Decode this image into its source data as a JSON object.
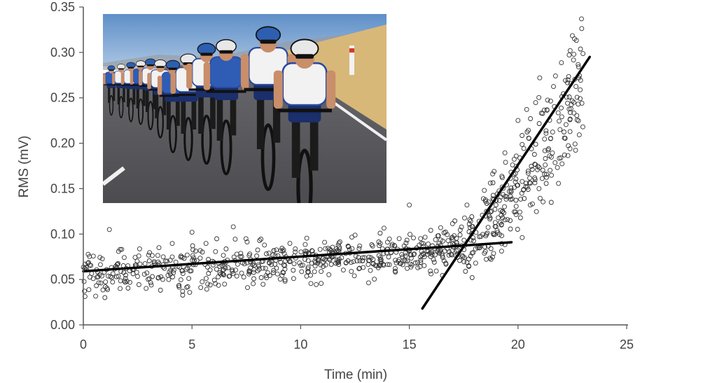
{
  "chart_data": {
    "type": "scatter",
    "xlabel": "Time (min)",
    "ylabel": "RMS (mV)",
    "xlim": [
      0,
      25
    ],
    "ylim": [
      0,
      0.35
    ],
    "x_ticks": [
      0,
      5,
      10,
      15,
      20,
      25
    ],
    "y_ticks": [
      0.0,
      0.05,
      0.1,
      0.15,
      0.2,
      0.25,
      0.3,
      0.35
    ],
    "x_tick_labels": [
      "0",
      "5",
      "10",
      "15",
      "20",
      "25"
    ],
    "y_tick_labels": [
      "0.00",
      "0.05",
      "0.10",
      "0.15",
      "0.20",
      "0.25",
      "0.30",
      "0.35"
    ],
    "grid": false,
    "marker": "open-circle",
    "point_cloud": {
      "description_segments": [
        {
          "x_range": [
            0,
            17.5
          ],
          "trend_start": 0.057,
          "trend_end": 0.088,
          "spread": 0.012
        },
        {
          "x_range": [
            17.5,
            23
          ],
          "trend_start": 0.085,
          "trend_end": 0.27,
          "spread": 0.025
        }
      ]
    },
    "outliers": [
      {
        "x": 1.2,
        "y": 0.105
      },
      {
        "x": 5.0,
        "y": 0.102
      },
      {
        "x": 6.9,
        "y": 0.108
      },
      {
        "x": 15.0,
        "y": 0.132
      },
      {
        "x": 22.6,
        "y": 0.315
      },
      {
        "x": 22.4,
        "y": 0.302
      },
      {
        "x": 20.0,
        "y": 0.225
      },
      {
        "x": 21.0,
        "y": 0.272
      }
    ],
    "fit_lines": [
      {
        "x": [
          0,
          19.7
        ],
        "y": [
          0.059,
          0.091
        ]
      },
      {
        "x": [
          15.6,
          23.3
        ],
        "y": [
          0.018,
          0.295
        ]
      }
    ]
  },
  "inset_image": {
    "subject": "cycling-peloton-photo",
    "colors": {
      "sky": "#7ea4cf",
      "road": "#5a5a5e",
      "field": "#d8b878",
      "jersey_blue": "#2f5db5",
      "jersey_white": "#f2f2f2"
    }
  }
}
